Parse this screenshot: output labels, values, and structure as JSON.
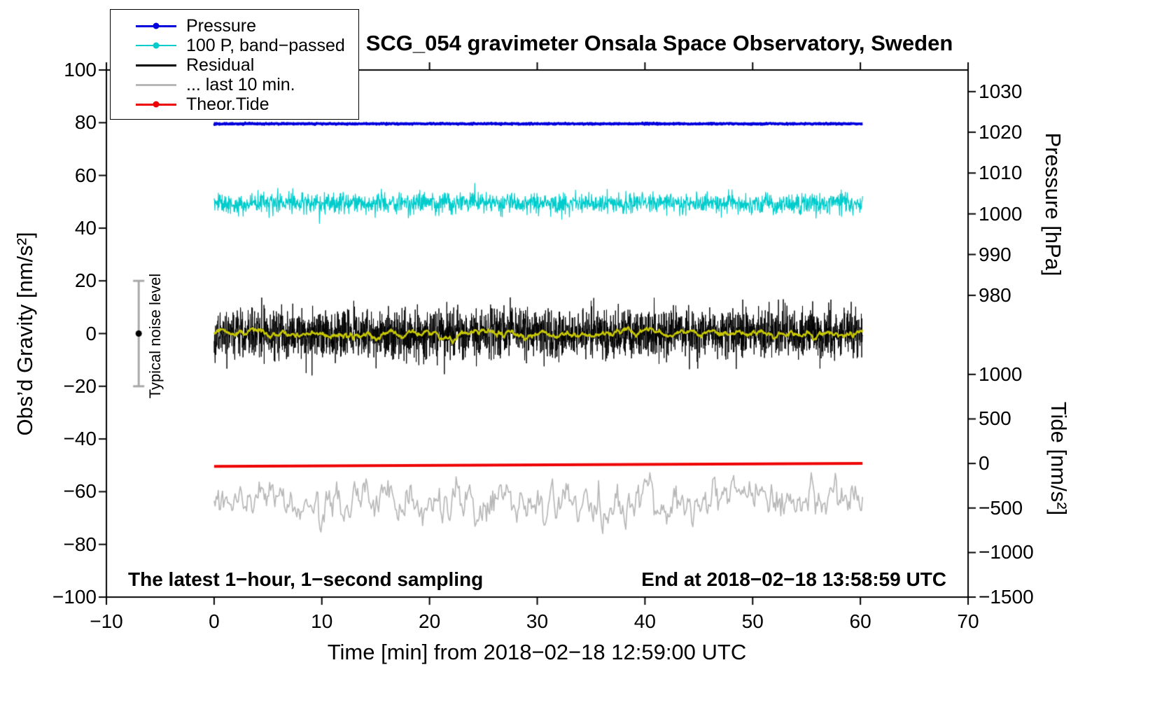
{
  "chart_data": {
    "type": "line",
    "title": "SCG_054 gravimeter Onsala Space Observatory, Sweden",
    "xlabel": "Time [min] from 2018−02−18 12:59:00 UTC",
    "ylabel_left": "Obs’d Gravity [nm/s²]",
    "xlim": [
      -10,
      70
    ],
    "ylim_left": [
      -100,
      100
    ],
    "x_ticks": [
      -10,
      0,
      10,
      20,
      30,
      40,
      50,
      60,
      70
    ],
    "y_ticks_left": [
      -100,
      -80,
      -60,
      -40,
      -20,
      0,
      20,
      40,
      60,
      80,
      100
    ],
    "right_axis_pressure": {
      "label": "Pressure [hPa]",
      "ticks": [
        {
          "value": 1030,
          "lu": 91.8
        },
        {
          "value": 1020,
          "lu": 76.4
        },
        {
          "value": 1010,
          "lu": 60.9
        },
        {
          "value": 1000,
          "lu": 45.4
        },
        {
          "value": 990,
          "lu": 30.0
        },
        {
          "value": 980,
          "lu": 14.5
        }
      ]
    },
    "right_axis_tide": {
      "label": "Tide [nm/s²]",
      "ticks": [
        {
          "value": 1000,
          "lu": -15.5
        },
        {
          "value": 500,
          "lu": -32.4
        },
        {
          "value": 0,
          "lu": -49.3
        },
        {
          "value": -500,
          "lu": -66.2
        },
        {
          "value": -1000,
          "lu": -83.1
        },
        {
          "value": -1500,
          "lu": -100
        }
      ]
    },
    "annotations": {
      "sampling": "The latest 1−hour, 1−second sampling",
      "end_time": "End at 2018−02−18 13:58:59 UTC"
    },
    "noise_marker": {
      "x": -7,
      "y": 0,
      "error": 20,
      "label": "Typical noise level",
      "bar_color": "#a8a8a8",
      "dot_color": "#000000"
    },
    "legend": {
      "items": [
        {
          "label": "Pressure",
          "color": "#0000dd",
          "marker": true,
          "line_width": 3
        },
        {
          "label": "100 P, band−passed",
          "color": "#00cccc",
          "marker": true,
          "line_width": 2
        },
        {
          "label": "Residual",
          "color": "#000000",
          "marker": false,
          "line_width": 3
        },
        {
          "label": "... last 10 min.",
          "color": "#b8b8b8",
          "marker": false,
          "line_width": 3
        },
        {
          "label": "Theor.Tide",
          "color": "#ee0000",
          "marker": true,
          "line_width": 3
        }
      ]
    },
    "series": [
      {
        "id": "bandpassed_pressure",
        "name": "100 P, band−passed",
        "type": "noise",
        "color": "#00cccc",
        "width": 1.2,
        "x_start": 0,
        "x_end": 60.2,
        "baseline": 49.5,
        "sigma": 2.0,
        "spike_prob": 0.006,
        "spike_scale": 2.3,
        "points": 1700,
        "seed": 11
      },
      {
        "id": "residual",
        "name": "Residual",
        "type": "noise",
        "color": "#000000",
        "width": 1,
        "x_start": 0,
        "x_end": 60.2,
        "baseline": 0,
        "sigma": 4.5,
        "spike_prob": 0.007,
        "spike_scale": 2.1,
        "points": 3200,
        "seed": 22
      },
      {
        "id": "residual_smoothed",
        "name": "Residual smoothed",
        "type": "smooth_noise",
        "color": "#c8c800",
        "width": 2.4,
        "x_start": 0,
        "x_end": 60.2,
        "baseline": -0.3,
        "amp": 1.0,
        "alpha": 0.08,
        "points": 1200,
        "seed": 33
      },
      {
        "id": "residual_last10",
        "name": "... last 10 min.",
        "type": "smooth_noise",
        "color": "#b8b8b8",
        "width": 1.7,
        "x_start": 0,
        "x_end": 60.2,
        "baseline": -63.5,
        "amp": 4.5,
        "alpha": 0.28,
        "points": 620,
        "seed": 44
      },
      {
        "id": "theor_tide",
        "name": "Theor.Tide",
        "type": "trend",
        "color": "#ee0000",
        "width": 4,
        "x_start": 0,
        "x_end": 60.2,
        "y_start": -50.4,
        "y_end": -49.3,
        "points": 2,
        "seed": 55
      },
      {
        "id": "pressure",
        "name": "Pressure",
        "type": "noise",
        "color": "#0000dd",
        "width": 3.5,
        "x_start": 0,
        "x_end": 60.2,
        "baseline": 79.6,
        "sigma": 0.12,
        "spike_prob": 0,
        "spike_scale": 1,
        "points": 1500,
        "seed": 66
      }
    ]
  }
}
